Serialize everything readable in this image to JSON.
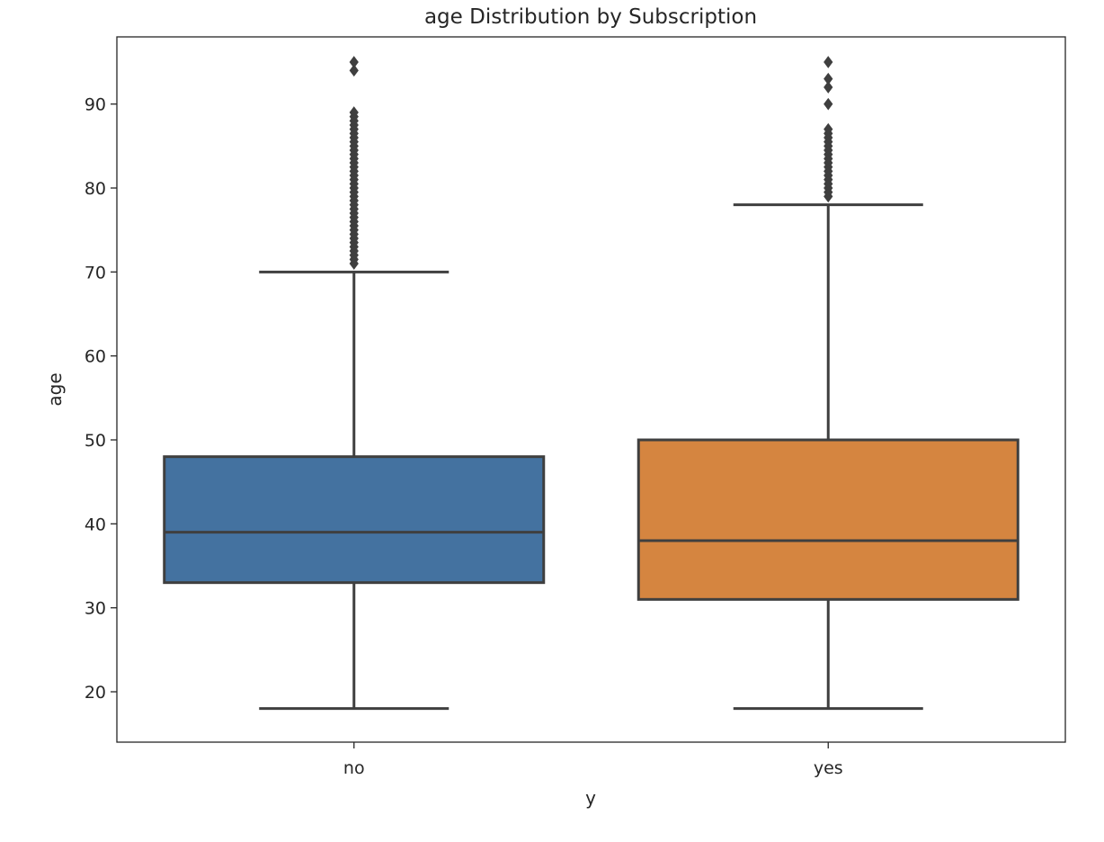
{
  "chart_data": {
    "type": "box",
    "title": "age Distribution by Subscription",
    "xlabel": "y",
    "ylabel": "age",
    "categories": [
      "no",
      "yes"
    ],
    "ylim": [
      14,
      98
    ],
    "yticks": [
      20,
      30,
      40,
      50,
      60,
      70,
      80,
      90
    ],
    "grid": false,
    "boxes": [
      {
        "category": "no",
        "color": "#4472A0",
        "whisker_low": 18,
        "q1": 33,
        "median": 39,
        "q3": 48,
        "whisker_high": 70,
        "outliers": [
          71,
          71.5,
          72,
          72.5,
          73,
          73.5,
          74,
          74.5,
          75,
          75.5,
          76,
          76.5,
          77,
          77.5,
          78,
          78.5,
          79,
          79.5,
          80,
          80.5,
          81,
          81.5,
          82,
          82.5,
          83,
          83.5,
          84,
          84.5,
          85,
          85.5,
          86,
          86.5,
          87,
          87.5,
          88,
          88.5,
          89,
          94,
          95
        ]
      },
      {
        "category": "yes",
        "color": "#D58540",
        "whisker_low": 18,
        "q1": 31,
        "median": 38,
        "q3": 50,
        "whisker_high": 78,
        "outliers": [
          79,
          79.5,
          80,
          80.5,
          81,
          81.5,
          82,
          82.5,
          83,
          83.5,
          84,
          84.5,
          85,
          85.5,
          86,
          86.5,
          87,
          90,
          92,
          93,
          95
        ]
      }
    ]
  }
}
